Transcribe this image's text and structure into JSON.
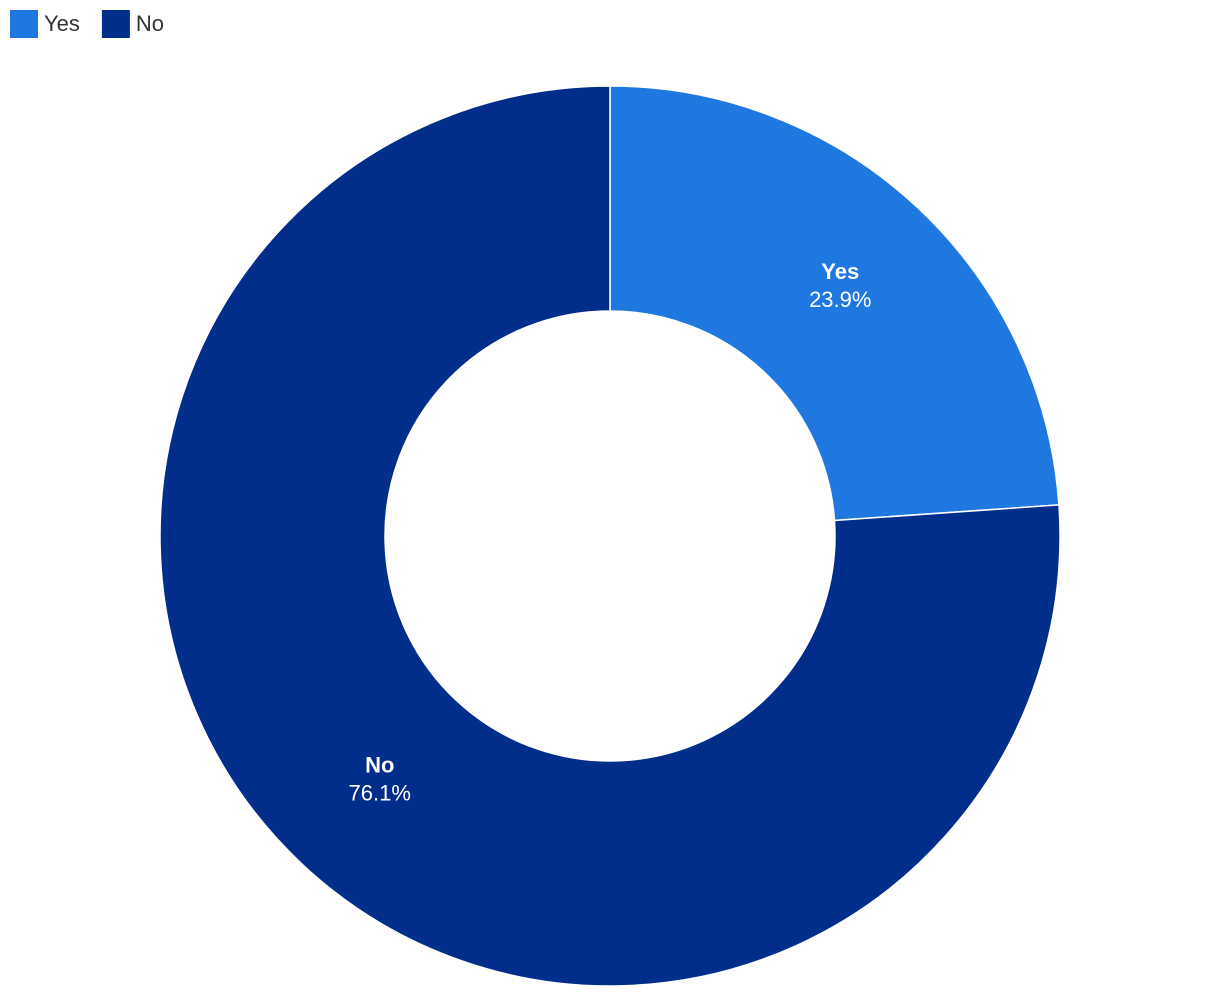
{
  "chart_data": {
    "type": "donut",
    "categories": [
      "Yes",
      "No"
    ],
    "values": [
      23.9,
      76.1
    ],
    "value_labels": [
      "23.9%",
      "76.1%"
    ],
    "colors": [
      "#1f77e0",
      "#002e8a"
    ],
    "legend": "top-left"
  }
}
